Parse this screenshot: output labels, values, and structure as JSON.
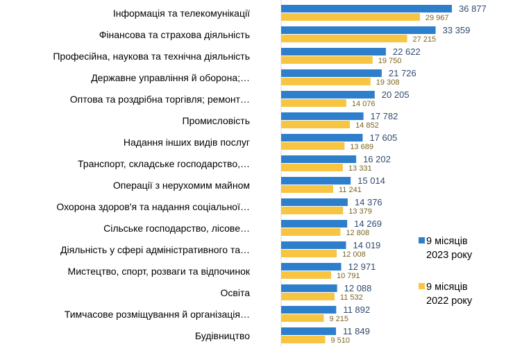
{
  "chart_data": {
    "type": "bar",
    "orientation": "horizontal",
    "categories": [
      "Інформація та телекомунікації",
      "Фінансова та страхова діяльність",
      "Професійна, наукова та технічна діяльність",
      "Державне управління й оборона;…",
      "Оптова та роздрібна торгівля; ремонт…",
      "Промисловість",
      "Надання інших видів послуг",
      "Транспорт, складське господарство,…",
      "Операції з нерухомим майном",
      "Охорона здоров'я та надання соціальної…",
      "Сільське господарство, лісове…",
      "Діяльність у сфері адміністративного та…",
      "Мистецтво, спорт, розваги та відпочинок",
      "Освіта",
      "Тимчасове розміщування й організація…",
      "Будівництво"
    ],
    "series": [
      {
        "name": "9 місяців 2023 року",
        "legend_lines": [
          "9 місяців",
          "2023 року"
        ],
        "color": "#2e7fcb",
        "values": [
          36877,
          33359,
          22622,
          21726,
          20205,
          17782,
          17605,
          16202,
          15014,
          14376,
          14269,
          14019,
          12971,
          12088,
          11892,
          11849
        ],
        "labels": [
          "36 877",
          "33 359",
          "22 622",
          "21 726",
          "20 205",
          "17 782",
          "17 605",
          "16 202",
          "15 014",
          "14 376",
          "14 269",
          "14 019",
          "12 971",
          "12 088",
          "11 892",
          "11 849"
        ]
      },
      {
        "name": "9 місяців 2022 року",
        "legend_lines": [
          "9 місяців",
          "2022 року"
        ],
        "color": "#f7c542",
        "values": [
          29967,
          27215,
          19750,
          19308,
          14076,
          14852,
          13689,
          13331,
          11241,
          13379,
          12808,
          12008,
          10791,
          11532,
          9215,
          9510
        ],
        "labels": [
          "29 967",
          "27 215",
          "19 750",
          "19 308",
          "14 076",
          "14 852",
          "13 689",
          "13 331",
          "11 241",
          "13 379",
          "12 808",
          "12 008",
          "10 791",
          "11 532",
          "9 215",
          "9 510"
        ]
      }
    ],
    "xlim": [
      0,
      37000
    ],
    "grid": false,
    "legend_position": "right"
  }
}
